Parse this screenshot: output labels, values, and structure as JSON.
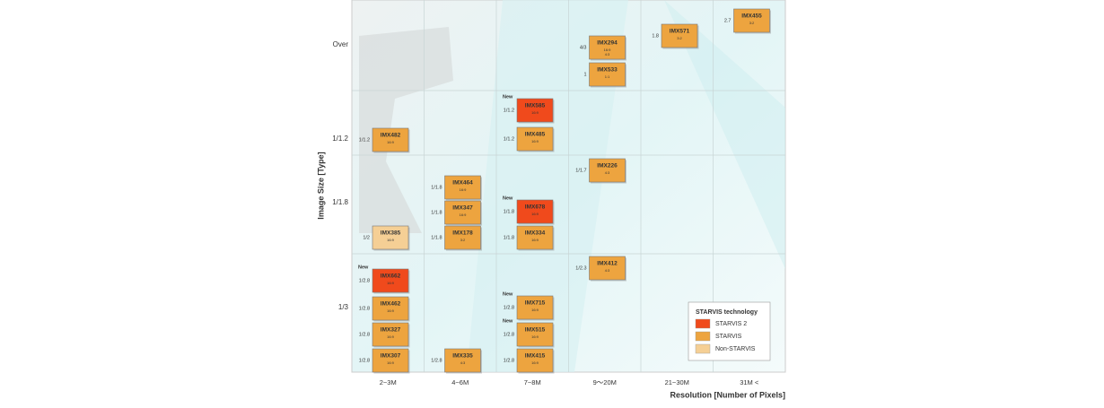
{
  "y_axis": {
    "title": "Image Size [Type]",
    "labels": [
      "Over",
      "1/1.2",
      "1/1.8",
      "1/3"
    ]
  },
  "x_axis": {
    "title": "Resolution  [Number of Pixels]"
  },
  "columns": [
    {
      "label": "2~3M",
      "sensors": [
        {
          "name": "IMX482",
          "aspects": [
            "16:9"
          ],
          "size": "1/1.2",
          "color": "#eda43f"
        },
        {
          "name": "IMX385",
          "aspects": [
            "16:9"
          ],
          "size": "1/2",
          "color": "#f5cf95"
        },
        {
          "name": "IMX662",
          "aspects": [
            "16:9"
          ],
          "size": "1/2.8",
          "badge": "New",
          "color": "#f04a1c"
        },
        {
          "name": "IMX462",
          "aspects": [
            "16:9"
          ],
          "size": "1/2.8",
          "color": "#eda43f"
        },
        {
          "name": "IMX327",
          "aspects": [
            "16:9"
          ],
          "size": "1/2.8",
          "color": "#eda43f"
        },
        {
          "name": "IMX307",
          "aspects": [
            "16:9"
          ],
          "size": "1/2.8",
          "color": "#eda43f"
        }
      ]
    },
    {
      "label": "4~6M",
      "sensors": [
        {
          "name": "IMX464",
          "aspects": [
            "16:9"
          ],
          "size": "1/1.8",
          "color": "#eda43f"
        },
        {
          "name": "IMX347",
          "aspects": [
            "16:9"
          ],
          "size": "1/1.8",
          "color": "#eda43f"
        },
        {
          "name": "IMX178",
          "aspects": [
            "3:2"
          ],
          "size": "1/1.8",
          "color": "#eda43f"
        },
        {
          "name": "IMX335",
          "aspects": [
            "4:3"
          ],
          "size": "1/2.8",
          "color": "#eda43f"
        }
      ]
    },
    {
      "label": "7~8M",
      "sensors": [
        {
          "name": "IMX585",
          "aspects": [
            "16:9"
          ],
          "size": "1/1.2",
          "badge": "New",
          "color": "#f04a1c"
        },
        {
          "name": "IMX485",
          "aspects": [
            "16:9"
          ],
          "size": "1/1.2",
          "color": "#eda43f"
        },
        {
          "name": "IMX678",
          "aspects": [
            "16:9"
          ],
          "size": "1/1.8",
          "badge": "New",
          "color": "#f04a1c"
        },
        {
          "name": "IMX334",
          "aspects": [
            "16:9"
          ],
          "size": "1/1.8",
          "color": "#eda43f"
        },
        {
          "name": "IMX715",
          "aspects": [
            "16:9"
          ],
          "size": "1/2.8",
          "badge": "New",
          "color": "#eda43f"
        },
        {
          "name": "IMX515",
          "aspects": [
            "16:9"
          ],
          "size": "1/2.8",
          "badge": "New",
          "color": "#eda43f"
        },
        {
          "name": "IMX415",
          "aspects": [
            "16:9"
          ],
          "size": "1/2.8",
          "color": "#eda43f"
        }
      ]
    },
    {
      "label": "9〜20M",
      "sensors": [
        {
          "name": "IMX294",
          "aspects": [
            "16:9",
            "4:3"
          ],
          "size": "4/3",
          "color": "#eda43f"
        },
        {
          "name": "IMX533",
          "aspects": [
            "1:1"
          ],
          "size": "1",
          "color": "#eda43f"
        },
        {
          "name": "IMX226",
          "aspects": [
            "4:3"
          ],
          "size": "1/1.7",
          "color": "#eda43f"
        },
        {
          "name": "IMX412",
          "aspects": [
            "4:3"
          ],
          "size": "1/2.3",
          "color": "#eda43f"
        }
      ]
    },
    {
      "label": "21~30M",
      "sensors": [
        {
          "name": "IMX571",
          "aspects": [
            "3:2"
          ],
          "size": "1.8",
          "color": "#eda43f"
        }
      ]
    },
    {
      "label": "31M <",
      "sensors": [
        {
          "name": "IMX455",
          "aspects": [
            "3:2"
          ],
          "size": "2.7",
          "color": "#eda43f"
        }
      ]
    }
  ],
  "legend": {
    "title": "STARVIS technology",
    "items": [
      {
        "label": "STARVIS 2",
        "color": "#f04a1c"
      },
      {
        "label": "STARVIS",
        "color": "#eda43f"
      },
      {
        "label": "Non-STARVIS",
        "color": "#f5cf95"
      }
    ]
  }
}
